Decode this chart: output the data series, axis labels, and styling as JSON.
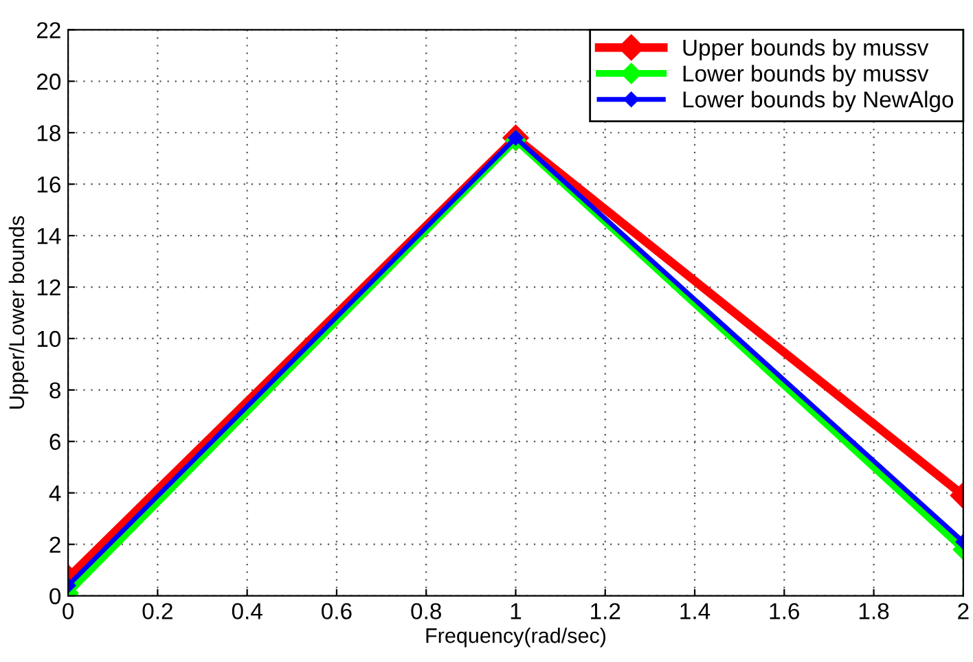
{
  "chart_data": {
    "type": "line",
    "xlabel": "Frequency(rad/sec)",
    "ylabel": "Upper/Lower bounds",
    "x": [
      0,
      1,
      2
    ],
    "series": [
      {
        "name": "Upper bounds by mussv",
        "color": "#ff0000",
        "values": [
          0.7,
          17.8,
          3.9
        ]
      },
      {
        "name": "Lower bounds by mussv",
        "color": "#00ff00",
        "values": [
          0.1,
          17.7,
          1.8
        ]
      },
      {
        "name": "Lower bounds by NewAlgo",
        "color": "#0000ff",
        "values": [
          0.4,
          17.8,
          2.1
        ]
      }
    ],
    "xlim": [
      0,
      2
    ],
    "xticks": [
      0,
      0.2,
      0.4,
      0.6,
      0.8,
      1,
      1.2,
      1.4,
      1.6,
      1.8,
      2
    ],
    "ylim": [
      0,
      22
    ],
    "yticks": [
      0,
      2,
      4,
      6,
      8,
      10,
      12,
      14,
      16,
      18,
      20,
      22
    ],
    "grid": true,
    "legend": "top right",
    "marker": "diamond",
    "line_style": "solid"
  }
}
